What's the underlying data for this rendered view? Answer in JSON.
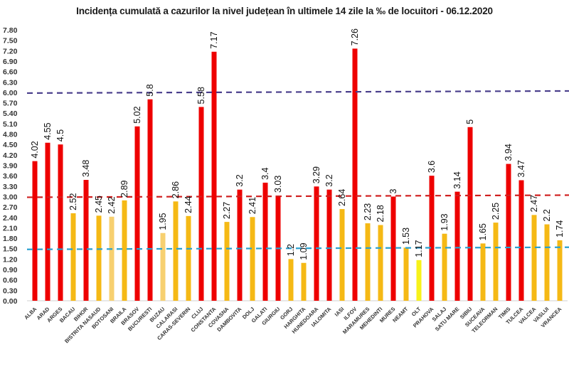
{
  "chart_data": {
    "type": "bar",
    "title": "Incidența cumulată a cazurilor la nivel județean în ultimele 14 zile la ‰ de locuitori - 06.12.2020",
    "xlabel": "",
    "ylabel": "",
    "ylim": [
      0,
      7.8
    ],
    "ytick_step": 0.3,
    "ytick_labels": [
      "0.00",
      "0.30",
      "0.60",
      "0.90",
      "1.20",
      "1.50",
      "1.80",
      "2.10",
      "2.40",
      "2.70",
      "3.00",
      "3.30",
      "3.60",
      "3.90",
      "4.20",
      "4.50",
      "4.80",
      "5.10",
      "5.40",
      "5.70",
      "6.00",
      "6.30",
      "6.60",
      "6.90",
      "7.20",
      "7.50",
      "7.80"
    ],
    "grid": false,
    "legend": "none",
    "categories": [
      "ALBA",
      "ARAD",
      "ARGES",
      "BACAU",
      "BIHOR",
      "BISTRITA NASAUD",
      "BOTOSANI",
      "BRAILA",
      "BRASOV",
      "BUCURESTI",
      "BUZAU",
      "CALARASI",
      "CARAS-SEVERIN",
      "CLUJ",
      "CONSTANTA",
      "COVASNA",
      "DAMBOVITA",
      "DOLJ",
      "GALATI",
      "GIURGIU",
      "GORJ",
      "HARGHITA",
      "HUNEDOARA",
      "IALOMITA",
      "IASI",
      "ILFOV",
      "MARAMURES",
      "MEHEDINTI",
      "MURES",
      "NEAMT",
      "OLT",
      "PRAHOVA",
      "SALAJ",
      "SATU MARE",
      "SIBIU",
      "SUCEAVA",
      "TELEORMAN",
      "TIMIS",
      "TULCEA",
      "VALCEA",
      "VASLUI",
      "VRANCEA"
    ],
    "values": [
      4.02,
      4.55,
      4.5,
      2.52,
      3.48,
      2.45,
      2.42,
      2.89,
      5.02,
      5.8,
      1.95,
      2.86,
      2.44,
      5.58,
      7.17,
      2.27,
      3.2,
      2.41,
      3.4,
      3.03,
      1.2,
      1.09,
      3.29,
      3.2,
      2.64,
      7.26,
      2.23,
      2.18,
      3,
      1.53,
      1.17,
      3.6,
      1.93,
      3.14,
      5,
      1.65,
      2.25,
      3.94,
      3.47,
      2.47,
      2.2,
      1.74
    ],
    "data_labels": [
      "4.02",
      "4.55",
      "4.5",
      "2.52",
      "3.48",
      "2.45",
      "2.42",
      "2.89",
      "5.02",
      "5.8",
      "1.95",
      "2.86",
      "2.44",
      "5.58",
      "7.17",
      "2.27",
      "3.2",
      "2.41",
      "3.4",
      "3.03",
      "1.2",
      "1.09",
      "3.29",
      "3.2",
      "2.64",
      "7.26",
      "2.23",
      "2.18",
      "3",
      "1.53",
      "1.17",
      "3.6",
      "1.93",
      "3.14",
      "5",
      "1.65",
      "2.25",
      "3.94",
      "3.47",
      "2.47",
      "2.2",
      "1.74"
    ],
    "bar_color_groups": [
      "red",
      "red",
      "red",
      "orange",
      "red",
      "orange",
      "light",
      "orange",
      "red",
      "red",
      "light",
      "orange",
      "orange",
      "red",
      "red",
      "orange",
      "red",
      "orange",
      "red",
      "red",
      "orange",
      "orange",
      "red",
      "red",
      "orange",
      "red",
      "orange",
      "orange",
      "red",
      "orange",
      "yellow",
      "red",
      "orange",
      "red",
      "red",
      "orange",
      "orange",
      "red",
      "red",
      "orange",
      "orange",
      "orange"
    ],
    "colors": {
      "red": "#ee0000",
      "orange": "#f5b915",
      "light": "#f7d070",
      "yellow": "#f7f21a"
    },
    "reference_lines": [
      {
        "name": "threshold-6",
        "value": 6.0,
        "color": "#4a3f8c"
      },
      {
        "name": "threshold-3",
        "value": 3.0,
        "color": "#d02020"
      },
      {
        "name": "threshold-1.5",
        "value": 1.5,
        "color": "#2aa0d0"
      }
    ]
  }
}
